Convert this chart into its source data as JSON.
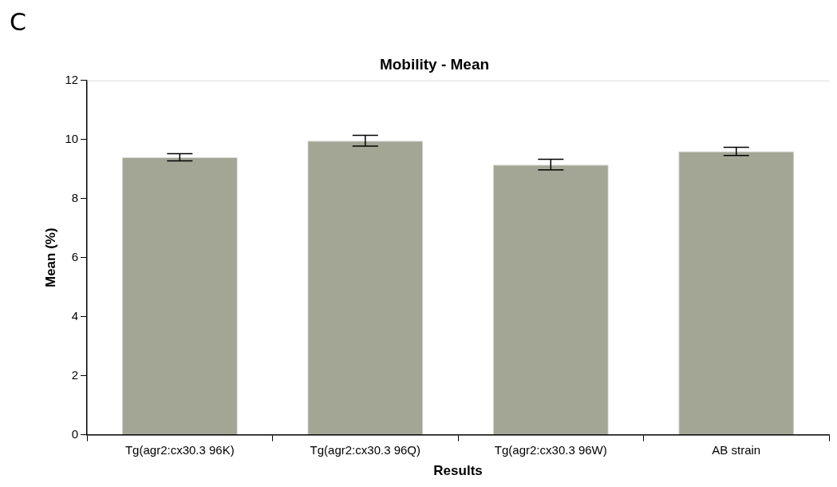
{
  "chart_data": {
    "type": "bar",
    "title": "Mobility - Mean",
    "xlabel": "Results",
    "ylabel": "Mean (%)",
    "categories": [
      "Tg(agr2:cx30.3 96K)",
      "Tg(agr2:cx30.3 96Q)",
      "Tg(agr2:cx30.3 96W)",
      "AB strain"
    ],
    "values": [
      9.4,
      9.96,
      9.15,
      9.6
    ],
    "errors": [
      0.12,
      0.18,
      0.18,
      0.14
    ],
    "color": "#a3a694",
    "ylim": [
      0,
      12
    ],
    "yticks": [
      0,
      2,
      4,
      6,
      8,
      10,
      12
    ],
    "annotations": [
      "C"
    ]
  }
}
